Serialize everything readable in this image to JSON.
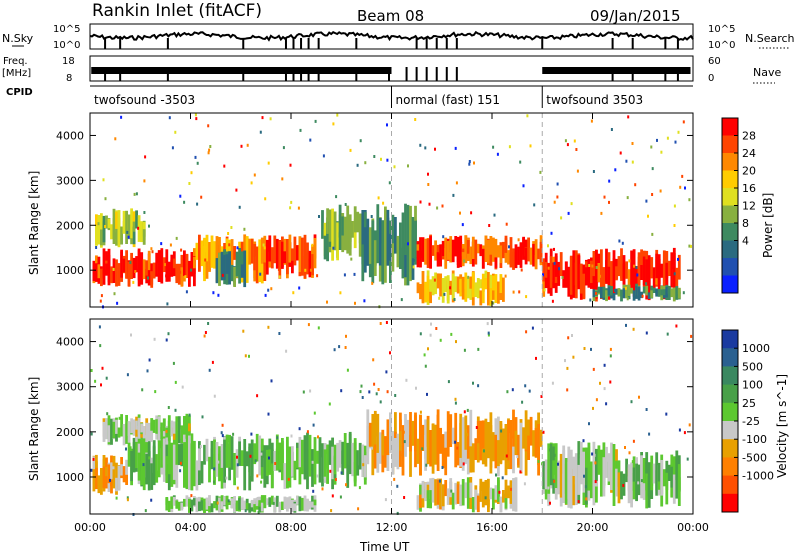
{
  "header": {
    "title": "Rankin Inlet (fitACF)",
    "beam": "Beam 08",
    "date": "09/Jan/2015"
  },
  "status_panels": {
    "nsky_label": "N.Sky",
    "nsearch_label": "N.Search",
    "nsky_ticks": [
      "10^5",
      "10^0"
    ],
    "nsearch_ticks": [
      "10^5",
      "10^0"
    ],
    "freq_label_1": "Freq.",
    "freq_label_2": "[MHz]",
    "freq_ticks": [
      "18",
      "8"
    ],
    "nave_label": "Nave",
    "nave_ticks": [
      "60",
      "0"
    ],
    "cpid_label": "CPID",
    "cpid_segments": [
      {
        "label": "twofsound -3503",
        "start_hour": 0,
        "end_hour": 12
      },
      {
        "label": "normal (fast) 151",
        "start_hour": 12,
        "end_hour": 18
      },
      {
        "label": "twofsound 3503",
        "start_hour": 18,
        "end_hour": 24
      }
    ]
  },
  "power_panel": {
    "ylabel": "Slant Range [km]",
    "yticks": [
      1000,
      2000,
      3000,
      4000
    ],
    "colorbar_label": "Power [dB]",
    "colorbar_ticks": [
      "28",
      "24",
      "20",
      "16",
      "12",
      "8",
      "4"
    ],
    "colorbar_colors": [
      "#ff0000",
      "#ff4400",
      "#ff8800",
      "#ffcc00",
      "#e0e020",
      "#88b040",
      "#3e8a60",
      "#2a6a80",
      "#2050b0",
      "#0a20ff"
    ]
  },
  "velocity_panel": {
    "ylabel": "Slant Range [km]",
    "yticks": [
      1000,
      2000,
      3000,
      4000
    ],
    "colorbar_label": "Velocity [m s^-1]",
    "colorbar_ticks": [
      "1000",
      "500",
      "100",
      "25",
      "-25",
      "-100",
      "-500",
      "-1000"
    ],
    "colorbar_colors": [
      "#1a3aa0",
      "#2a6090",
      "#3a8860",
      "#48a048",
      "#5cc830",
      "#c8c8c8",
      "#e8a000",
      "#ff8000",
      "#ff5000",
      "#ff0000"
    ]
  },
  "xaxis": {
    "label": "Time UT",
    "ticks": [
      "00:00",
      "04:00",
      "08:00",
      "12:00",
      "16:00",
      "20:00",
      "00:00"
    ]
  },
  "chart_data": {
    "type": "heatmap",
    "x_range_hours": [
      0,
      24
    ],
    "y_range_km": [
      180,
      4500
    ],
    "panels": [
      {
        "name": "power",
        "unit": "dB",
        "colorbar_range": [
          0,
          30
        ],
        "regions": [
          {
            "t_start": 0.1,
            "t_end": 4.2,
            "r_start": 600,
            "r_end": 1500,
            "value": 27
          },
          {
            "t_start": 0.2,
            "t_end": 2.2,
            "r_start": 1500,
            "r_end": 2400,
            "value": 15
          },
          {
            "t_start": 4.2,
            "t_end": 7.0,
            "r_start": 700,
            "r_end": 1800,
            "value": 22
          },
          {
            "t_start": 5.0,
            "t_end": 6.2,
            "r_start": 600,
            "r_end": 1500,
            "value": 10
          },
          {
            "t_start": 7.0,
            "t_end": 9.0,
            "r_start": 800,
            "r_end": 1800,
            "value": 26
          },
          {
            "t_start": 9.2,
            "t_end": 10.8,
            "r_start": 1200,
            "r_end": 2500,
            "value": 14
          },
          {
            "t_start": 10.8,
            "t_end": 13.0,
            "r_start": 600,
            "r_end": 2500,
            "value": 11
          },
          {
            "t_start": 13.0,
            "t_end": 18.0,
            "r_start": 1000,
            "r_end": 1800,
            "value": 25
          },
          {
            "t_start": 13.0,
            "t_end": 16.5,
            "r_start": 200,
            "r_end": 1000,
            "value": 20
          },
          {
            "t_start": 18.0,
            "t_end": 23.5,
            "r_start": 300,
            "r_end": 1500,
            "value": 27
          },
          {
            "t_start": 20.0,
            "t_end": 23.5,
            "r_start": 300,
            "r_end": 700,
            "value": 11
          }
        ]
      },
      {
        "name": "velocity",
        "unit": "m s^-1",
        "colorbar_range": [
          -1000,
          1000
        ],
        "regions": [
          {
            "t_start": 0.1,
            "t_end": 1.5,
            "r_start": 600,
            "r_end": 1500,
            "value": -300
          },
          {
            "t_start": 1.5,
            "t_end": 11.0,
            "r_start": 700,
            "r_end": 2000,
            "value": 120
          },
          {
            "t_start": 0.5,
            "t_end": 4.0,
            "r_start": 1700,
            "r_end": 2400,
            "value": 0
          },
          {
            "t_start": 3.0,
            "t_end": 9.0,
            "r_start": 200,
            "r_end": 600,
            "value": 80
          },
          {
            "t_start": 11.0,
            "t_end": 18.0,
            "r_start": 1000,
            "r_end": 2500,
            "value": -350
          },
          {
            "t_start": 13.0,
            "t_end": 17.0,
            "r_start": 200,
            "r_end": 1000,
            "value": -200
          },
          {
            "t_start": 18.0,
            "t_end": 21.5,
            "r_start": 300,
            "r_end": 1800,
            "value": 0
          },
          {
            "t_start": 21.5,
            "t_end": 23.5,
            "r_start": 300,
            "r_end": 1600,
            "value": 150
          }
        ]
      }
    ]
  }
}
